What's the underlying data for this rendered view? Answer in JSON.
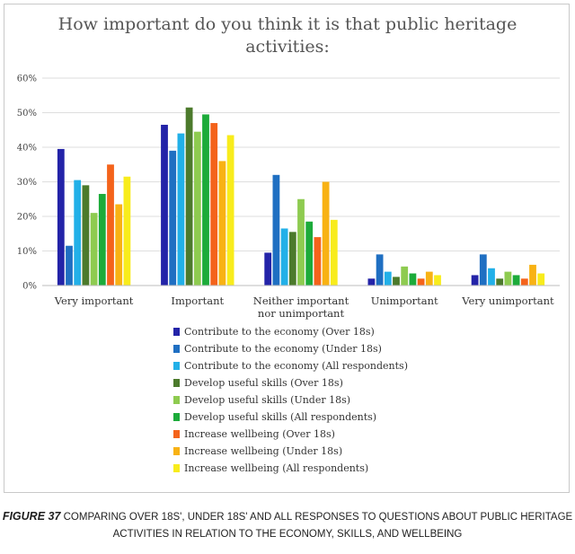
{
  "chart_data": {
    "type": "bar",
    "title": [
      "How important do you think it is that public heritage",
      "activities:"
    ],
    "xlabel": "",
    "ylabel": "",
    "ylim": [
      0,
      60
    ],
    "yticks": [
      "0%",
      "10%",
      "20%",
      "30%",
      "40%",
      "50%",
      "60%"
    ],
    "grid": true,
    "legend_placement": "bottom",
    "categories": [
      [
        "Very important"
      ],
      [
        "Important"
      ],
      [
        "Neither important",
        "nor unimportant"
      ],
      [
        "Unimportant"
      ],
      [
        "Very unimportant"
      ]
    ],
    "series": [
      {
        "name": "Contribute to the economy (Over 18s)",
        "color": "#2323a8",
        "values": [
          39.5,
          46.5,
          9.5,
          2,
          3
        ]
      },
      {
        "name": "Contribute to the economy (Under 18s)",
        "color": "#1f6fc2",
        "values": [
          11.5,
          39,
          32,
          9,
          9
        ]
      },
      {
        "name": "Contribute to the economy (All respondents)",
        "color": "#22b0e8",
        "values": [
          30.5,
          44,
          16.5,
          4,
          5
        ]
      },
      {
        "name": "Develop useful skills (Over 18s)",
        "color": "#4c7a2c",
        "values": [
          29,
          51.5,
          15.5,
          2.5,
          2
        ]
      },
      {
        "name": "Develop useful skills (Under 18s)",
        "color": "#8ecb50",
        "values": [
          21,
          44.5,
          25,
          5.5,
          4
        ]
      },
      {
        "name": "Develop useful skills (All respondents)",
        "color": "#1cab3a",
        "values": [
          26.5,
          49.5,
          18.5,
          3.5,
          3
        ]
      },
      {
        "name": "Increase wellbeing (Over 18s)",
        "color": "#f4631b",
        "values": [
          35,
          47,
          14,
          2,
          2
        ]
      },
      {
        "name": "Increase wellbeing (Under 18s)",
        "color": "#f8b214",
        "values": [
          23.5,
          36,
          30,
          4,
          6
        ]
      },
      {
        "name": "Increase wellbeing (All respondents)",
        "color": "#f8ec1c",
        "values": [
          31.5,
          43.5,
          19,
          3,
          3.5
        ]
      }
    ]
  },
  "caption": {
    "figure_label": "Figure 37",
    "text": "Comparing Over 18s', Under 18s' and all responses to questions about public heritage activities in relation to the economy, skills, and wellbeing"
  }
}
